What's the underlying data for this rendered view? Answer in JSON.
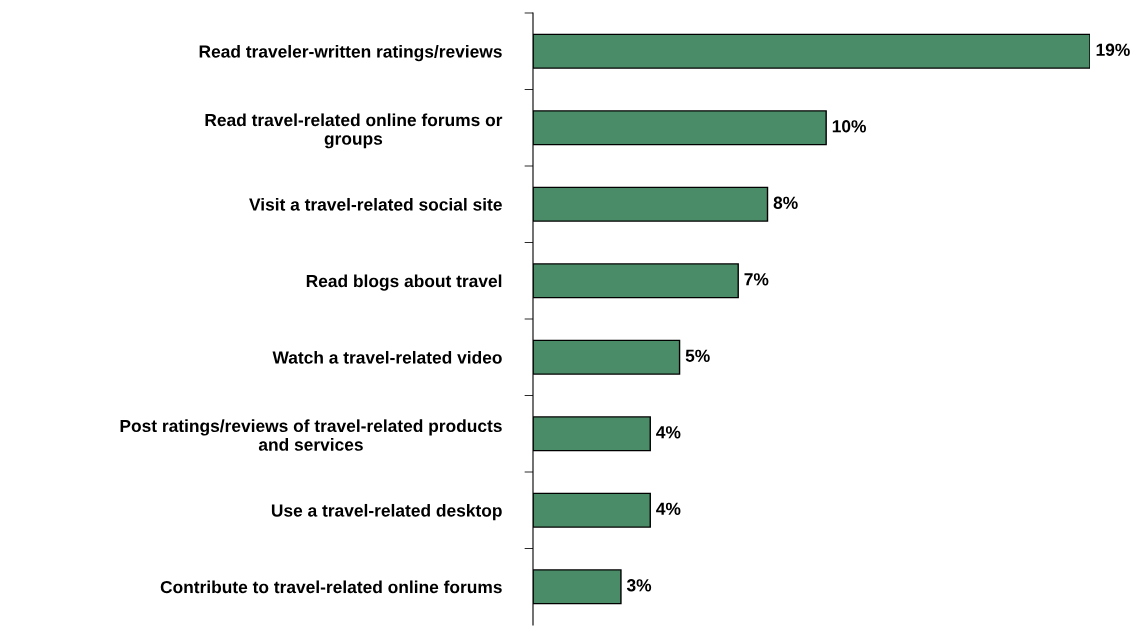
{
  "chart_data": {
    "type": "bar",
    "orientation": "horizontal",
    "categories": [
      "Read traveler-written ratings/reviews",
      "Read travel-related online forums or\ngroups",
      "Visit a travel-related social site",
      "Read blogs about travel",
      "Watch a travel-related video",
      "Post ratings/reviews of travel-related products\nand services",
      "Use a travel-related desktop",
      "Contribute to travel-related online forums"
    ],
    "values": [
      19,
      10,
      8,
      7,
      5,
      4,
      4,
      3
    ],
    "value_labels": [
      "19%",
      "10%",
      "8%",
      "7%",
      "5%",
      "4%",
      "4%",
      "3%"
    ],
    "color": "#4a8c67",
    "grid": false,
    "legend": false
  }
}
